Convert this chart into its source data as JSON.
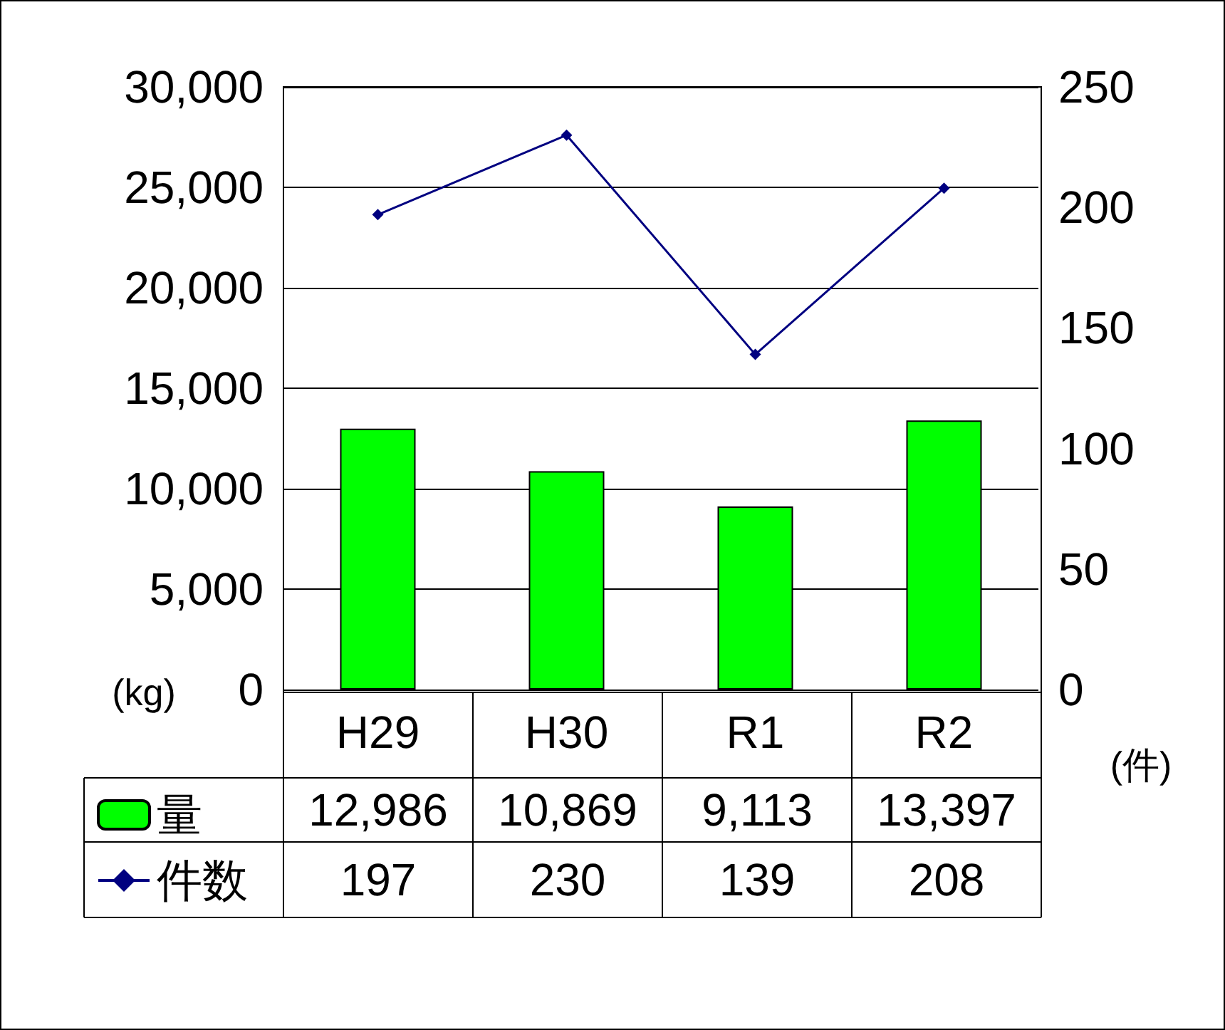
{
  "chart_data": {
    "type": "bar",
    "categories": [
      "H29",
      "H30",
      "R1",
      "R2"
    ],
    "series": [
      {
        "name": "量",
        "color": "#00ff00",
        "values": [
          12986,
          10869,
          9113,
          13397
        ],
        "value_labels": [
          "12,986",
          "10,869",
          "9,113",
          "13,397"
        ]
      },
      {
        "name": "件数",
        "type": "line",
        "axis": "y2",
        "color": "#000080",
        "values": [
          197,
          230,
          139,
          208
        ],
        "value_labels": [
          "197",
          "230",
          "139",
          "208"
        ]
      }
    ],
    "ylabel": "(kg)",
    "y2label": "(件)",
    "ylim": [
      0,
      30000
    ],
    "yticks": [
      {
        "value": 0,
        "label": "0"
      },
      {
        "value": 5000,
        "label": "5,000"
      },
      {
        "value": 10000,
        "label": "10,000"
      },
      {
        "value": 15000,
        "label": "15,000"
      },
      {
        "value": 20000,
        "label": "20,000"
      },
      {
        "value": 25000,
        "label": "25,000"
      },
      {
        "value": 30000,
        "label": "30,000"
      }
    ],
    "y2lim": [
      0,
      250
    ],
    "y2ticks": [
      0,
      50,
      100,
      150,
      200,
      250
    ],
    "grid": "y",
    "legend": "bottom left",
    "marker": "diamond"
  }
}
